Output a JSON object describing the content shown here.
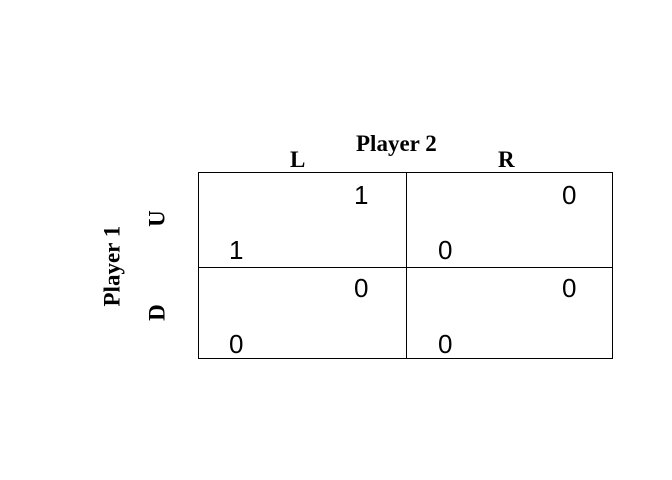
{
  "game": {
    "column_player": "Player 2",
    "row_player": "Player 1",
    "columns": [
      "L",
      "R"
    ],
    "rows": [
      "U",
      "D"
    ],
    "cells": {
      "UL": {
        "p1": "1",
        "p2": "1"
      },
      "UR": {
        "p1": "0",
        "p2": "0"
      },
      "DL": {
        "p1": "0",
        "p2": "0"
      },
      "DR": {
        "p1": "0",
        "p2": "0"
      }
    }
  }
}
